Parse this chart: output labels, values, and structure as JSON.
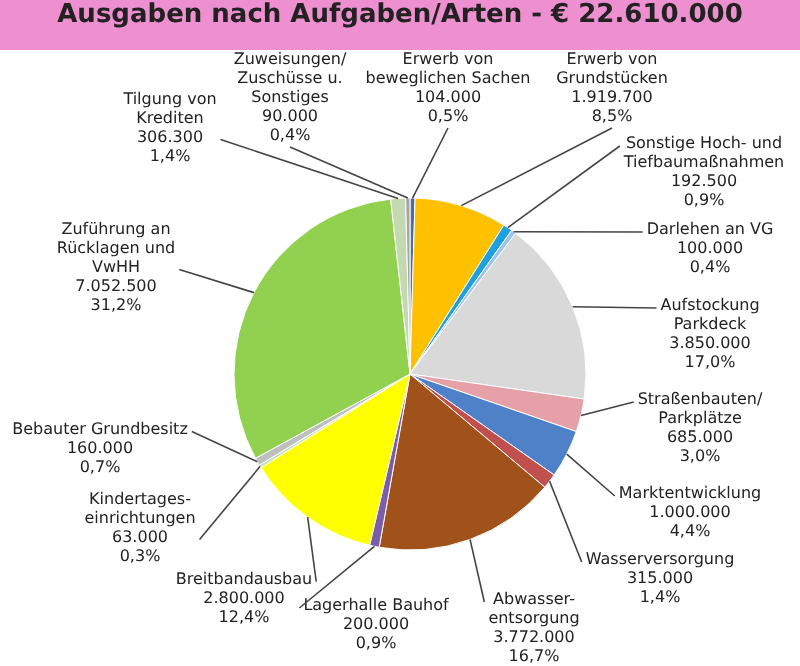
{
  "chart_data": {
    "type": "pie",
    "title": "Ausgaben nach Aufgaben/Arten  -  € 22.610.000",
    "categories": [
      "Erwerb von beweglichen Sachen",
      "Erwerb von Grundstücken",
      "Sonstige Hoch- und Tiefbaumaßnahmen",
      "Darlehen an VG",
      "Aufstockung Parkdeck",
      "Straßenbauten/ Parkplätze",
      "Marktentwicklung",
      "Wasserversorgung",
      "Abwasser- entsorgung",
      "Lagerhalle Bauhof",
      "Breitbandausbau",
      "Kindertages- einrichtungen",
      "Bebauter Grundbesitz",
      "Zuführung an Rücklagen und VwHH",
      "Tilgung von Krediten",
      "Zuweisungen/ Zuschüsse u. Sonstiges"
    ],
    "values": [
      104000,
      1919700,
      192500,
      100000,
      3850000,
      685000,
      1000000,
      315000,
      3772000,
      200000,
      2800000,
      63000,
      160000,
      7052500,
      306300,
      90000
    ],
    "value_labels": [
      "104.000\n0,5%",
      "1.919.700\n8,5%",
      "192.500\n0,9%",
      "100.000\n0,4%",
      "3.850.000\n17,0%",
      "685.000\n3,0%",
      "1.000.000\n4,4%",
      "315.000\n1,4%",
      "3.772.000\n16,7%",
      "200.000\n0,9%",
      "2.800.000\n12,4%",
      "63.000\n0,3%",
      "160.000\n0,7%",
      "7.052.500\n31,2%",
      "306.300\n1,4%",
      "90.000\n0,4%"
    ],
    "colors": [
      "#4a6fa0",
      "#ffc000",
      "#1e9fe0",
      "#9dc3e6",
      "#d9d9d9",
      "#e6a0a8",
      "#4f81c8",
      "#c0504d",
      "#a0521a",
      "#7b5ea7",
      "#ffff00",
      "#c6e0b4",
      "#bfbfbf",
      "#92d050",
      "#c5d9b0",
      "#a6a6a6"
    ],
    "legend": false
  }
}
